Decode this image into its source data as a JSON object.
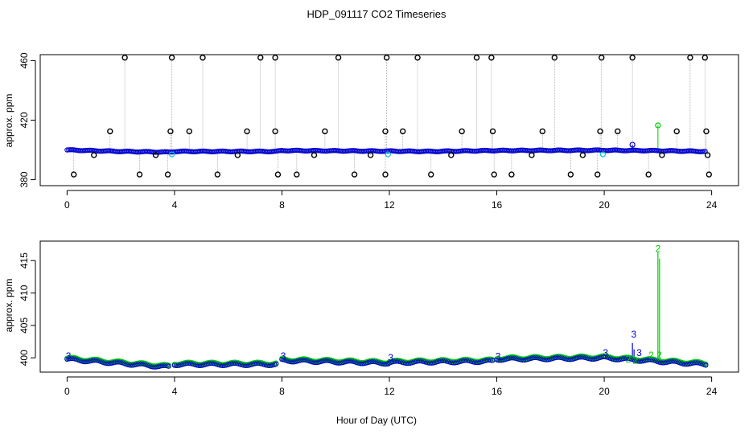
{
  "chart_data": [
    {
      "type": "scatter",
      "title": "HDP_091117  CO2 Timeseries",
      "ylabel": "approx. ppm",
      "xlabel": "",
      "xlim": [
        -1,
        25
      ],
      "ylim": [
        376,
        464
      ],
      "xticks": [
        "0",
        "4",
        "8",
        "12",
        "16",
        "20",
        "24"
      ],
      "yticks": [
        "380",
        "420",
        "460"
      ],
      "grid": false,
      "colors": {
        "outlier": "#000000",
        "main": "#0000cc",
        "secondary": "#00cc00",
        "cyan": "#00cccc",
        "line": "#999999"
      },
      "baseline": [
        {
          "x": 0,
          "y": 400
        },
        {
          "x": 2,
          "y": 399
        },
        {
          "x": 3.8,
          "y": 398.5
        },
        {
          "x": 4,
          "y": 399
        },
        {
          "x": 7.8,
          "y": 399
        },
        {
          "x": 8,
          "y": 399.6
        },
        {
          "x": 12,
          "y": 399.2
        },
        {
          "x": 13.5,
          "y": 399
        },
        {
          "x": 16,
          "y": 399.6
        },
        {
          "x": 20,
          "y": 399.8
        },
        {
          "x": 22,
          "y": 399.5
        },
        {
          "x": 23.8,
          "y": 399
        }
      ],
      "outliers_high": [
        2.15,
        3.9,
        5.05,
        7.2,
        7.75,
        10.1,
        11.9,
        13.05,
        15.25,
        15.8,
        18.15,
        19.9,
        21.05,
        23.2,
        23.75
      ],
      "outliers_low": [
        0.25,
        2.7,
        3.75,
        5.6,
        7.85,
        8.55,
        10.7,
        11.85,
        13.55,
        15.9,
        16.55,
        18.75,
        19.75,
        21.65,
        23.9
      ],
      "outliers_mid": [
        1.6,
        3.85,
        4.55,
        6.7,
        7.75,
        9.6,
        11.85,
        12.5,
        14.7,
        15.85,
        17.7,
        19.85,
        20.5,
        22.7,
        23.8
      ],
      "outliers_near": [
        1.0,
        3.3,
        6.35,
        9.2,
        11.3,
        14.3,
        17.3,
        19.2,
        22.15,
        23.85
      ],
      "spikes": [
        {
          "x": 21.05,
          "y": 403.5,
          "series": "main"
        },
        {
          "x": 22.0,
          "y": 416.5,
          "series": "secondary"
        }
      ]
    },
    {
      "type": "scatter",
      "title": "",
      "ylabel": "approx. ppm",
      "xlabel": "Hour of Day (UTC)",
      "xlim": [
        -1,
        25
      ],
      "ylim": [
        397.8,
        418
      ],
      "xticks": [
        "0",
        "4",
        "8",
        "12",
        "16",
        "20",
        "24"
      ],
      "yticks": [
        "400",
        "405",
        "410",
        "415"
      ],
      "grid": false,
      "segments": [
        {
          "x0": 0.0,
          "x1": 3.8,
          "y0": 399.8,
          "y1": 398.6
        },
        {
          "x0": 4.0,
          "x1": 7.8,
          "y0": 399.0,
          "y1": 399.0
        },
        {
          "x0": 8.0,
          "x1": 12.0,
          "y0": 399.6,
          "y1": 399.2
        },
        {
          "x0": 12.0,
          "x1": 15.9,
          "y0": 399.3,
          "y1": 399.5
        },
        {
          "x0": 16.0,
          "x1": 20.0,
          "y0": 399.8,
          "y1": 400.0
        },
        {
          "x0": 20.0,
          "x1": 23.8,
          "y0": 400.0,
          "y1": 399.0
        }
      ],
      "segment_labels": [
        {
          "x": 0.05,
          "y": 400.3,
          "text": "3",
          "series": "main"
        },
        {
          "x": 8.05,
          "y": 400.3,
          "text": "3",
          "series": "main"
        },
        {
          "x": 12.05,
          "y": 400.0,
          "text": "3",
          "series": "main"
        },
        {
          "x": 16.05,
          "y": 400.2,
          "text": "3",
          "series": "main"
        },
        {
          "x": 20.05,
          "y": 400.8,
          "text": "3",
          "series": "main"
        },
        {
          "x": 21.1,
          "y": 403.6,
          "text": "3",
          "series": "main"
        },
        {
          "x": 21.3,
          "y": 400.8,
          "text": "3",
          "series": "main"
        },
        {
          "x": 20.9,
          "y": 399.8,
          "text": "2",
          "series": "secondary"
        },
        {
          "x": 21.15,
          "y": 399.6,
          "text": "2",
          "series": "secondary"
        },
        {
          "x": 21.75,
          "y": 400.4,
          "text": "2",
          "series": "secondary"
        },
        {
          "x": 22.0,
          "y": 416.8,
          "text": "2",
          "series": "secondary"
        },
        {
          "x": 22.05,
          "y": 400.4,
          "text": "2",
          "series": "secondary"
        }
      ],
      "spikes": [
        {
          "x": 21.05,
          "y": 402.3,
          "series": "main"
        },
        {
          "x": 22.0,
          "y": 416.3,
          "series": "secondary"
        }
      ]
    }
  ]
}
